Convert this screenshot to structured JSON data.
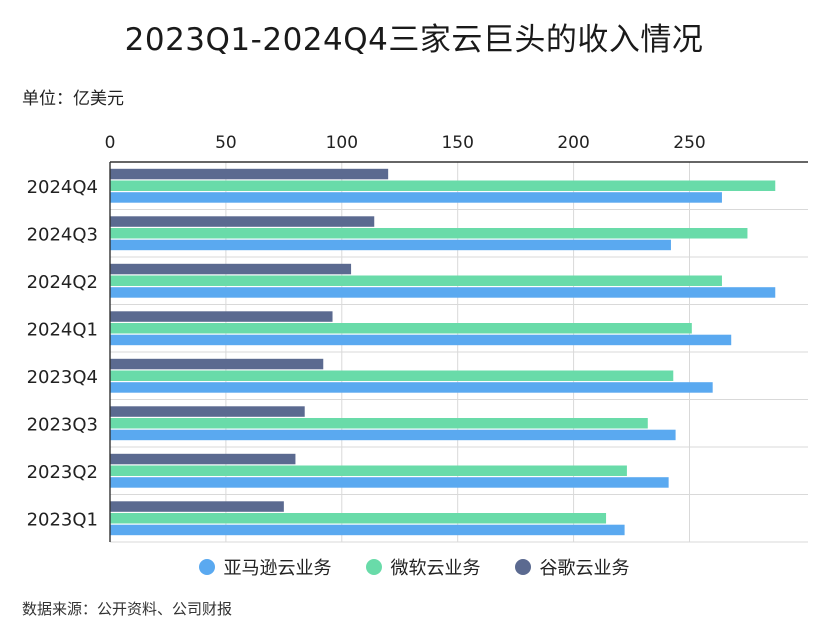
{
  "title": "2023Q1-2024Q4三家云巨头的收入情况",
  "unit_label": "单位：亿美元",
  "source_label": "数据来源：公开资料、公司财报",
  "colors": {
    "aws": "#5aa9f0",
    "azure": "#69dba9",
    "google": "#5b6a90",
    "grid": "#d9d9d9",
    "axis": "#333333"
  },
  "chart_data": {
    "type": "bar",
    "orientation": "horizontal",
    "categories": [
      "2024Q4",
      "2024Q3",
      "2024Q2",
      "2024Q1",
      "2023Q4",
      "2023Q3",
      "2023Q2",
      "2023Q1"
    ],
    "series": [
      {
        "name": "谷歌云业务",
        "color": "#5b6a90",
        "values": [
          120,
          114,
          104,
          96,
          92,
          84,
          80,
          75
        ]
      },
      {
        "name": "微软云业务",
        "color": "#69dba9",
        "values": [
          287,
          275,
          264,
          251,
          243,
          232,
          223,
          214
        ]
      },
      {
        "name": "亚马逊云业务",
        "color": "#5aa9f0",
        "values": [
          264,
          242,
          287,
          268,
          260,
          244,
          241,
          222
        ]
      }
    ],
    "x_ticks": [
      0,
      50,
      100,
      150,
      200,
      250
    ],
    "xlim": [
      0,
      300
    ],
    "x_axis_position": "top",
    "grid": true,
    "legend_position": "bottom",
    "legend_order": [
      "亚马逊云业务",
      "微软云业务",
      "谷歌云业务"
    ]
  }
}
